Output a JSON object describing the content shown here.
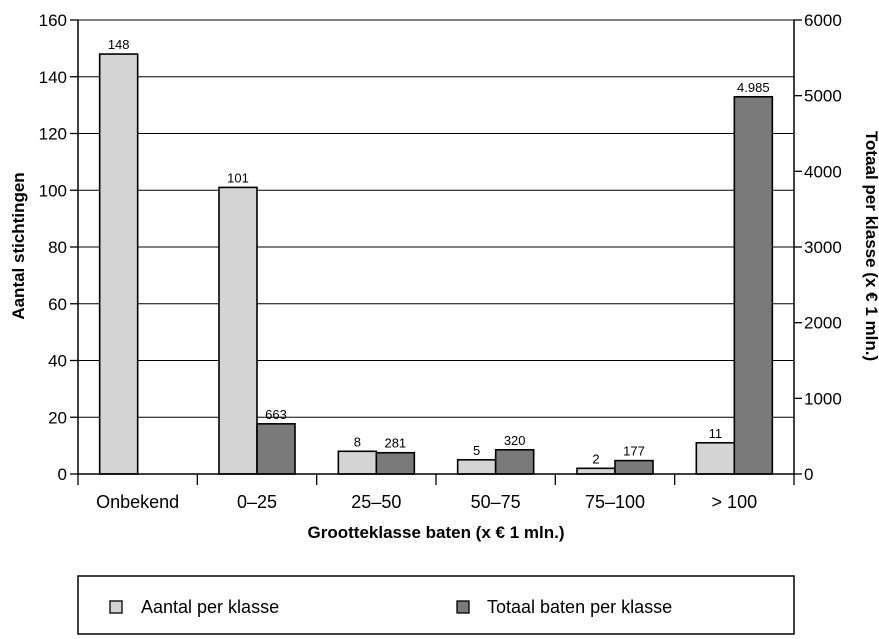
{
  "chart_data": {
    "type": "bar",
    "categories": [
      "Onbekend",
      "0–25",
      "25–50",
      "50–75",
      "75–100",
      "> 100"
    ],
    "xlabel": "Grootteklasse baten (x € 1 mln.)",
    "ylabel": "Aantal stichtingen",
    "y2label": "Totaal per klasse (x € 1 mln.)",
    "ylim": [
      0,
      160
    ],
    "y2lim": [
      0,
      6000
    ],
    "yticks": [
      0,
      20,
      40,
      60,
      80,
      100,
      120,
      140,
      160
    ],
    "y2ticks": [
      0,
      1000,
      2000,
      3000,
      4000,
      5000,
      6000
    ],
    "grid": true,
    "legend_position": "bottom",
    "series": [
      {
        "name": "Aantal per klasse",
        "axis": "left",
        "color": "#d4d4d4",
        "values": [
          148,
          101,
          8,
          5,
          2,
          11
        ],
        "labels": [
          "148",
          "101",
          "8",
          "5",
          "2",
          "11"
        ]
      },
      {
        "name": "Totaal baten per klasse",
        "axis": "right",
        "color": "#7a7a7a",
        "values": [
          null,
          663,
          281,
          320,
          177,
          4985
        ],
        "labels": [
          "",
          "663",
          "281",
          "320",
          "177",
          "4.985"
        ]
      }
    ]
  }
}
